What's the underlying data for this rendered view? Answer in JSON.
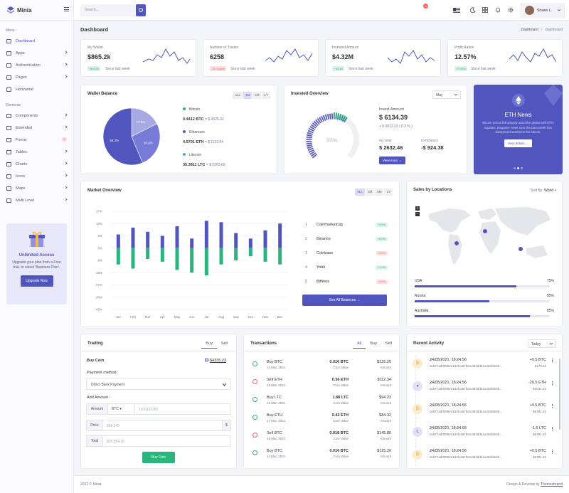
{
  "app": {
    "name": "Minia"
  },
  "sidebar": {
    "menu_title": "Menu",
    "elements_title": "Elements",
    "items": [
      {
        "label": "Dashboard"
      },
      {
        "label": "Apps"
      },
      {
        "label": "Authentication"
      },
      {
        "label": "Pages"
      },
      {
        "label": "Horizontal"
      }
    ],
    "elements": [
      {
        "label": "Components"
      },
      {
        "label": "Extended",
        "badge": "7"
      },
      {
        "label": "Forms"
      },
      {
        "label": "Tables"
      },
      {
        "label": "Charts"
      },
      {
        "label": "Icons"
      },
      {
        "label": "Maps"
      },
      {
        "label": "Multi Level"
      }
    ],
    "promo": {
      "title": "Unlimited Access",
      "text": "Upgrade your plan from a Free trial, to select 'Business Plan'.",
      "button": "Upgrade Now"
    }
  },
  "topbar": {
    "search_placeholder": "Search...",
    "notification_count": "5",
    "user": "Shawn L."
  },
  "page": {
    "title": "Dashboard",
    "breadcrumb_1": "Dashboard",
    "breadcrumb_sep": ">",
    "breadcrumb_2": "Dashboard"
  },
  "stats": [
    {
      "label": "My Wallet",
      "value": "$865.2k",
      "change": "+$20.9k",
      "since": "Since last week",
      "trend": "up"
    },
    {
      "label": "Number of Trades",
      "value": "6258",
      "change": "-29 Trades",
      "since": "Since last week",
      "trend": "down"
    },
    {
      "label": "Invested Amount",
      "value": "$4.32M",
      "change": "+ $2.8k",
      "since": "Since last week",
      "trend": "up"
    },
    {
      "label": "Profit Ration",
      "value": "12.57%",
      "change": "+2.95%",
      "since": "Since last week",
      "trend": "up"
    }
  ],
  "wallet": {
    "title": "Wallet Balance",
    "ranges": [
      "ALL",
      "1M",
      "6M",
      "1Y"
    ],
    "coins": [
      {
        "name": "Bitcoin",
        "amount": "0.4412 BTC",
        "usd": "= $ 4025.32",
        "color": "#2ab57d"
      },
      {
        "name": "Ethereum",
        "amount": "4.5701 ETH",
        "usd": "= $ 1123.64",
        "color": "#5156be"
      },
      {
        "name": "Litecoin",
        "amount": "35.3811 LTC",
        "usd": "= $ 2263.09",
        "color": "#4ba6ef"
      }
    ],
    "pie": [
      {
        "label": "17.5%",
        "value": 17.5,
        "color": "#a7a9e3"
      },
      {
        "label": "26.2%",
        "value": 26.2,
        "color": "#777bd7"
      },
      {
        "label": "56.3%",
        "value": 56.3,
        "color": "#5156be"
      }
    ]
  },
  "invested": {
    "title": "Invested Overview",
    "month": "May",
    "gauge_label": "80%",
    "gauge_value": 80,
    "amount_label": "Invest Amount",
    "amount": "$ 6134.39",
    "amount_change": "+ 0.0012.23 ( 0.2 % )",
    "income_label": "INCOME",
    "income": "$ 2632.46",
    "expenses_label": "EXPENSES",
    "expenses": "-$ 924.38",
    "view_more": "View more"
  },
  "news": {
    "title": "ETH News",
    "text": "Bitcoin prices fell sharply amid the global sell-off in equities. Negative news over the past week has dampened sentiment for bitcoin.",
    "button": "View details"
  },
  "market": {
    "title": "Market Overview",
    "ranges": [
      "ALL",
      "1M",
      "6M",
      "1Y"
    ],
    "balances_button": "See All Balances",
    "ranking": [
      {
        "n": "1",
        "name": "Coinmarketcap",
        "change": "+2.5%",
        "trend": "up"
      },
      {
        "n": "2",
        "name": "Binance",
        "change": "+8.3%",
        "trend": "up"
      },
      {
        "n": "3",
        "name": "Coinbase",
        "change": "-3.6%",
        "trend": "down"
      },
      {
        "n": "4",
        "name": "Yobit",
        "change": "+7.1%",
        "trend": "up"
      },
      {
        "n": "5",
        "name": "Bitfinex",
        "change": "-0.9%",
        "trend": "down"
      }
    ]
  },
  "chart_data": {
    "type": "bar",
    "categories": [
      "Jan",
      "Feb",
      "Mar",
      "Apr",
      "May",
      "Jun",
      "Jul",
      "Aug",
      "Sep",
      "Oct",
      "Nov",
      "Dec"
    ],
    "series": [
      {
        "values": [
          10,
          15,
          12,
          9,
          16,
          7,
          20,
          19,
          11,
          7,
          13,
          18
        ],
        "color": "#5156be"
      },
      {
        "values": [
          -12,
          -15,
          -8,
          -10,
          -16,
          -18,
          -20,
          -12,
          -9,
          -6,
          -10,
          -12
        ],
        "color": "#2ab57d"
      }
    ],
    "yticks": [
      "27%",
      "18%",
      "9%",
      "0%",
      "-9%",
      "-18%",
      "-27%",
      "-36%",
      "-45%"
    ],
    "ylim": [
      -45,
      27
    ]
  },
  "locations": {
    "title": "Sales by Locations",
    "sort_label": "Sort By:",
    "sort_value": "World",
    "rows": [
      {
        "name": "USA",
        "pct": "75%",
        "value": 75
      },
      {
        "name": "Russia",
        "pct": "55%",
        "value": 55
      },
      {
        "name": "Australia",
        "pct": "85%",
        "value": 85
      }
    ]
  },
  "trading": {
    "title": "Trading",
    "tabs": [
      "Buy",
      "Sell"
    ],
    "buy_coin": "Buy Coin",
    "balance": "$4335.23",
    "payment_label": "Payment method :",
    "payment_value": "Direct Bank Payment",
    "add_amount_label": "Add Amount :",
    "amount_addon": "Amount",
    "currency": "BTC",
    "amount_placeholder": "0.00121255",
    "price_addon": "Price",
    "price_placeholder": "$58,245",
    "price_suffix": "$",
    "total_addon": "Total",
    "total_placeholder": "$36,854.25",
    "button": "Buy Coin"
  },
  "transactions": {
    "title": "Transactions",
    "tabs": [
      "All",
      "Buy",
      "Sell"
    ],
    "rows": [
      {
        "type": "Buy BTC",
        "date": "14 Mar, 2021",
        "coin": "0.016 BTC",
        "coin_label": "Coin Value",
        "amount": "$125.20",
        "amount_label": "Amount",
        "dir": "in"
      },
      {
        "type": "Sell ETH",
        "date": "15 Mar, 2021",
        "coin": "0.56 ETH",
        "coin_label": "Coin Value",
        "amount": "$112.34",
        "amount_label": "Amount",
        "dir": "out"
      },
      {
        "type": "Buy LTC",
        "date": "16 Mar, 2021",
        "coin": "1.88 LTC",
        "coin_label": "Coin Value",
        "amount": "$94.22",
        "amount_label": "Amount",
        "dir": "in"
      },
      {
        "type": "Buy ETH",
        "date": "17 Mar, 2021",
        "coin": "0.42 ETH",
        "coin_label": "Coin Value",
        "amount": "$84.32",
        "amount_label": "Amount",
        "dir": "in"
      },
      {
        "type": "Sell BTC",
        "date": "18 Mar, 2021",
        "coin": "0.018 BTC",
        "coin_label": "Coin Value",
        "amount": "$145.80",
        "amount_label": "Amount",
        "dir": "out"
      },
      {
        "type": "Buy BTC",
        "date": "14 Mar, 2021",
        "coin": "0.016 BTC",
        "coin_label": "Coin Value",
        "amount": "$125.20",
        "amount_label": "Amount",
        "dir": "in"
      }
    ]
  },
  "activity": {
    "title": "Recent Activity",
    "filter": "Today",
    "rows": [
      {
        "date": "24/05/2021, 18:24:56",
        "hash": "0xb77ad0099e21d4fca87fa4ca92dda1a40af9e05...",
        "amount": "+0.5 BTC",
        "usd": "$178.53",
        "coin": "btc"
      },
      {
        "date": "24/05/2021, 18:24:56",
        "hash": "0xb77ad0099e21d4fca87fa4ca92dda1a40af9e05...",
        "amount": "-20.5 ETH",
        "usd": "$3541.45",
        "coin": "eth"
      },
      {
        "date": "24/05/2021, 18:24:56",
        "hash": "0xb77ad0099e21d4fca87fa4ca92dda1a40af9e05...",
        "amount": "+0.5 BTC",
        "usd": "$5791.45",
        "coin": "btc"
      },
      {
        "date": "24/05/2021, 18:24:56",
        "hash": "0xb77ad0099e21d4fca87fa4ca92dda1a40af9e05...",
        "amount": "-1.5 LTC",
        "usd": "$5791.45",
        "coin": "ltc"
      },
      {
        "date": "24/05/2021, 18:24:56",
        "hash": "0xb77ad0099e21d4fca87fa4ca92dda1a40af9e05...",
        "amount": "+0.5 BTC",
        "usd": "$5791.45",
        "coin": "btc"
      }
    ]
  },
  "footer": {
    "copyright": "2022 © Minia.",
    "credit": "Design & Develop by",
    "credit_link": "Themesbrand"
  }
}
